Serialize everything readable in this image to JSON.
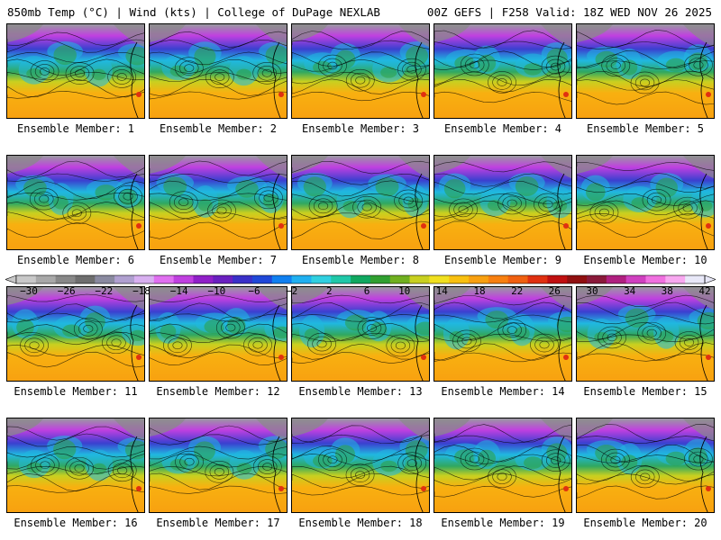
{
  "header": {
    "left": "850mb Temp (°C) | Wind (kts) | College of DuPage NEXLAB",
    "right": "00Z GEFS | F258 Valid: 18Z WED NOV 26 2025"
  },
  "members": [
    {
      "label": "Ensemble Member: 1"
    },
    {
      "label": "Ensemble Member: 2"
    },
    {
      "label": "Ensemble Member: 3"
    },
    {
      "label": "Ensemble Member: 4"
    },
    {
      "label": "Ensemble Member: 5"
    },
    {
      "label": "Ensemble Member: 6"
    },
    {
      "label": "Ensemble Member: 7"
    },
    {
      "label": "Ensemble Member: 8"
    },
    {
      "label": "Ensemble Member: 9"
    },
    {
      "label": "Ensemble Member: 10"
    },
    {
      "label": "Ensemble Member: 11"
    },
    {
      "label": "Ensemble Member: 12"
    },
    {
      "label": "Ensemble Member: 13"
    },
    {
      "label": "Ensemble Member: 14"
    },
    {
      "label": "Ensemble Member: 15"
    },
    {
      "label": "Ensemble Member: 16"
    },
    {
      "label": "Ensemble Member: 17"
    },
    {
      "label": "Ensemble Member: 18"
    },
    {
      "label": "Ensemble Member: 19"
    },
    {
      "label": "Ensemble Member: 20"
    }
  ],
  "colorbar": {
    "ticks": [
      "−30",
      "−26",
      "−22",
      "−18",
      "−14",
      "−10",
      "−6",
      "−2",
      "2",
      "6",
      "10",
      "14",
      "18",
      "22",
      "26",
      "30",
      "34",
      "38",
      "42"
    ],
    "colors": [
      "#c8c8c8",
      "#a8a8a8",
      "#888888",
      "#6e6e6e",
      "#8a8aa0",
      "#b0a0d0",
      "#d8b0f0",
      "#e070f0",
      "#c040e0",
      "#9020c8",
      "#6a20c0",
      "#3a30c8",
      "#2048d8",
      "#1080f0",
      "#20b0f0",
      "#30d0e0",
      "#20c8a8",
      "#10a860",
      "#30a030",
      "#70b020",
      "#c8d020",
      "#f0e020",
      "#f8c010",
      "#f8a010",
      "#f88010",
      "#f06010",
      "#e03010",
      "#c01010",
      "#901010",
      "#8a1a3a",
      "#b02080",
      "#d040c0",
      "#f070e0",
      "#f8a8f0",
      "#e8e8f8"
    ]
  }
}
